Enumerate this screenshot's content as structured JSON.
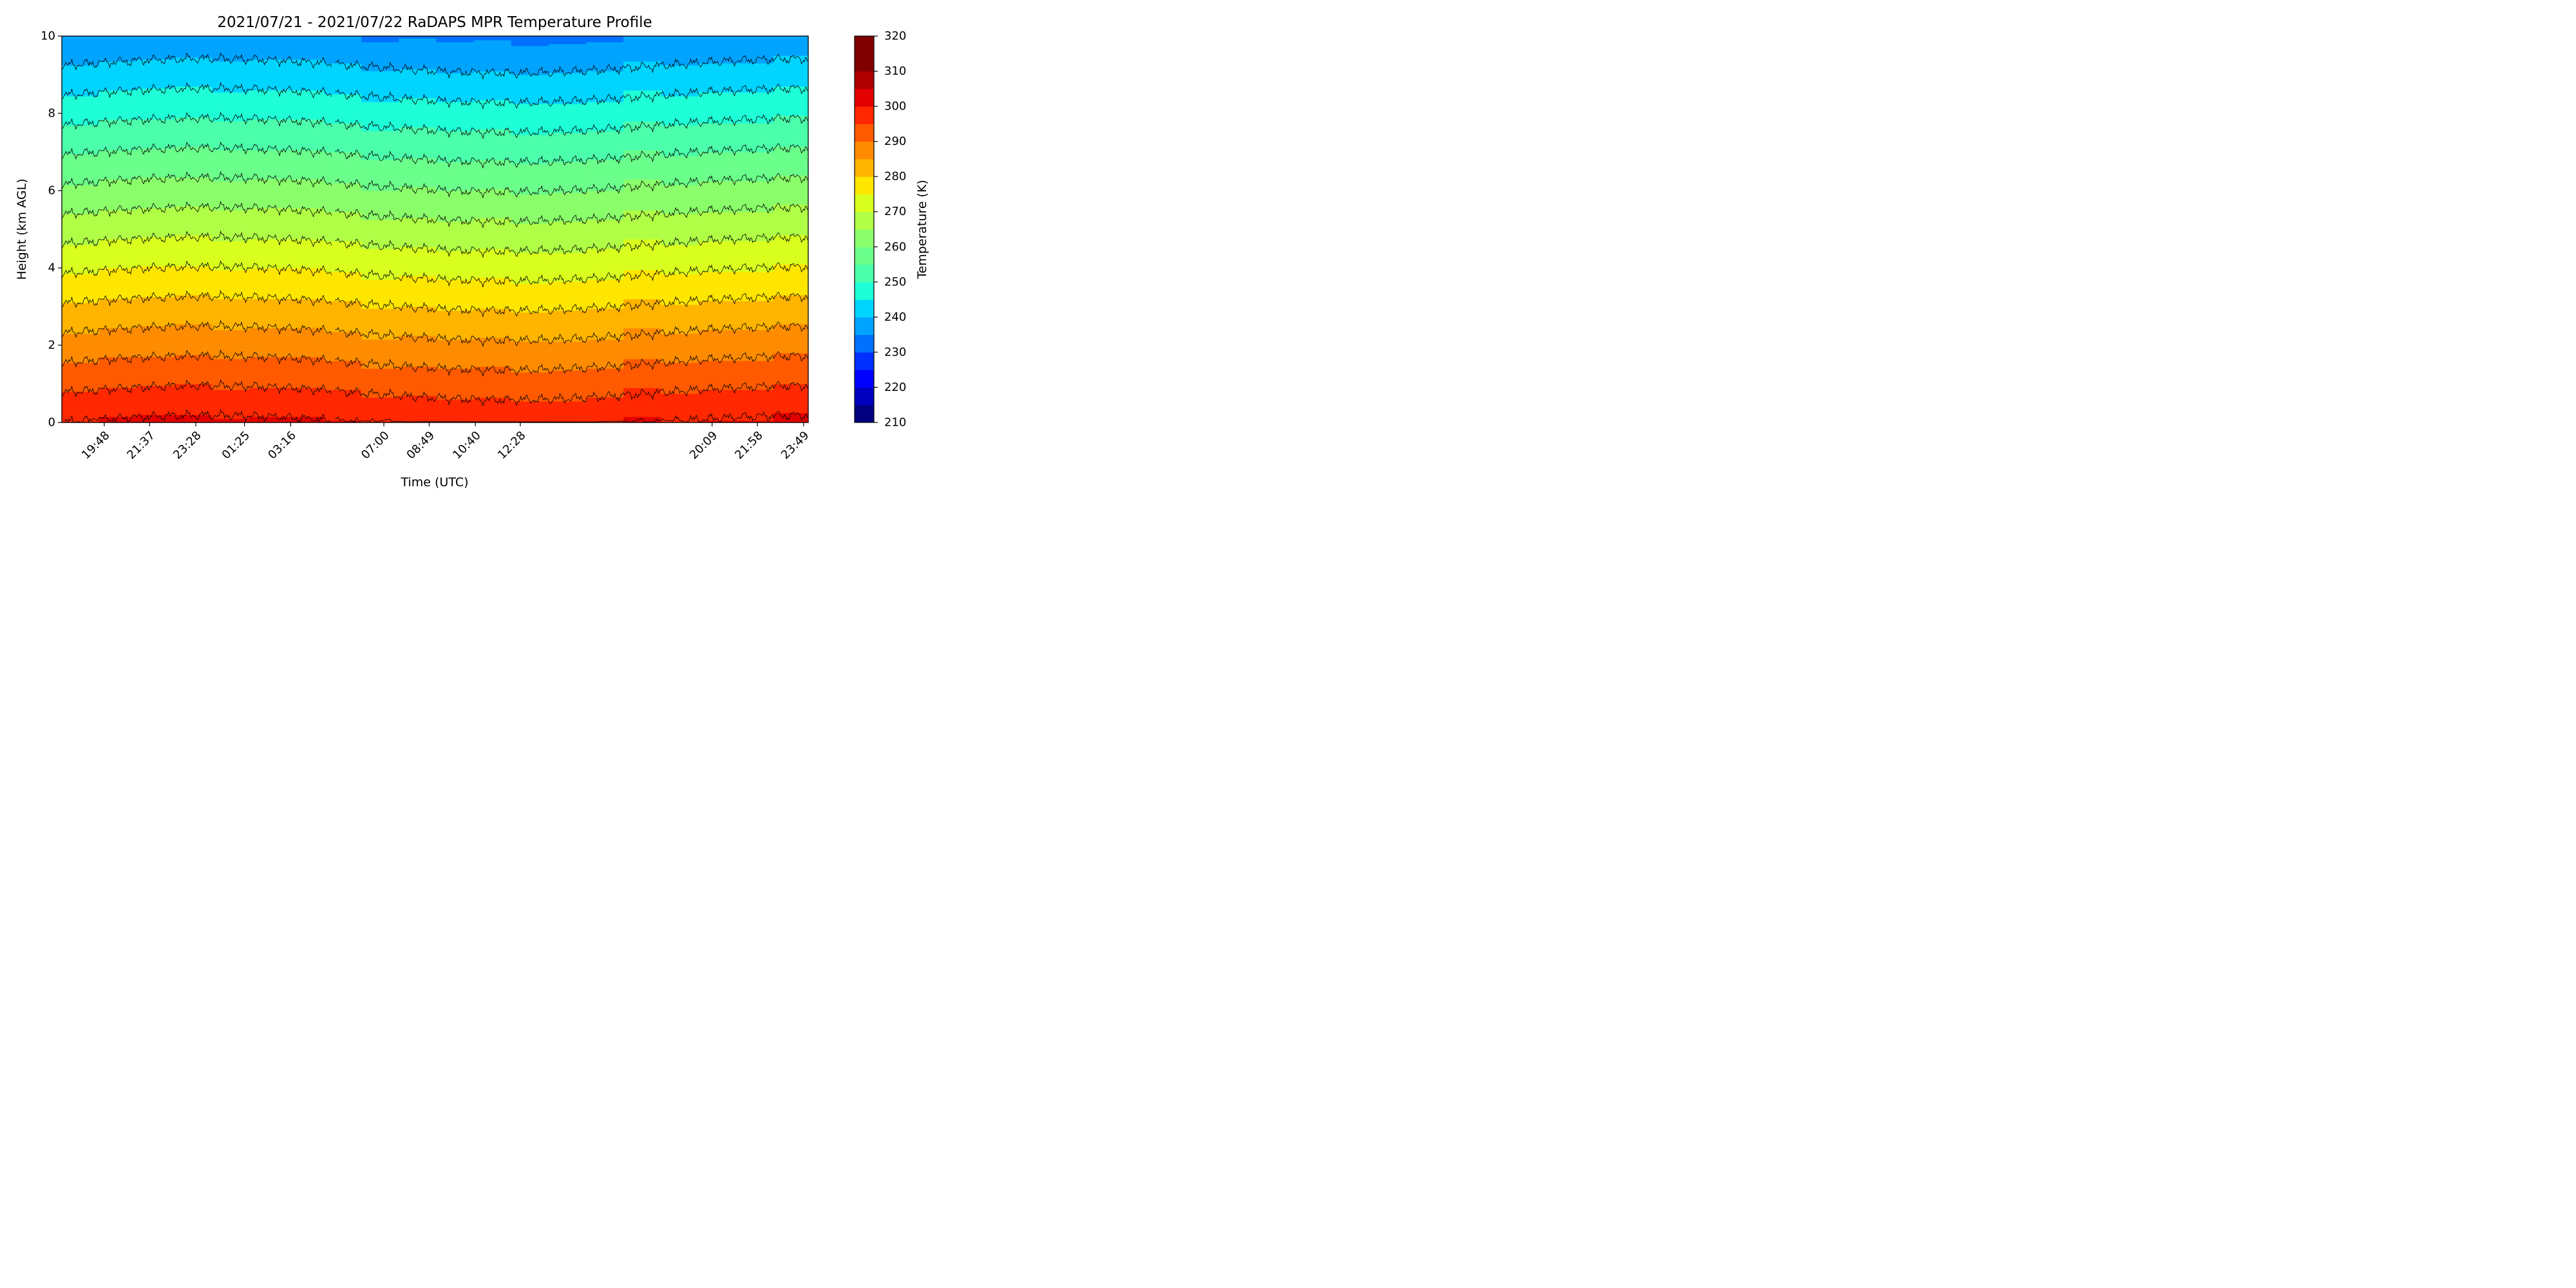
{
  "chart_data": {
    "type": "contourf",
    "title": "2021/07/21 - 2021/07/22 RaDAPS MPR Temperature Profile",
    "xlabel": "Time (UTC)",
    "ylabel": "Height (km AGL)",
    "ylim": [
      0,
      10
    ],
    "yticks": [
      0,
      2,
      4,
      6,
      8,
      10
    ],
    "xticks": [
      "19:48",
      "21:37",
      "23:28",
      "01:25",
      "03:16",
      "07:00",
      "08:49",
      "10:40",
      "12:28",
      "20:09",
      "21:58",
      "23:49"
    ],
    "xtick_times_hours": [
      19.8,
      21.6167,
      23.4667,
      25.4167,
      27.2667,
      31.0,
      32.8167,
      34.6667,
      36.4667,
      44.15,
      45.9667,
      47.8167
    ],
    "xlim_hours": [
      18.1,
      48.0
    ],
    "gap_hours": [
      28.9,
      29.05
    ],
    "colorbar": {
      "label": "Temperature (K)",
      "vmin": 210,
      "vmax": 320,
      "step": 5,
      "ticks": [
        210,
        220,
        230,
        240,
        250,
        260,
        270,
        280,
        290,
        300,
        310,
        320
      ],
      "colors": [
        "#000080",
        "#0000c1",
        "#0000ff",
        "#0030ff",
        "#0070ff",
        "#00a4ff",
        "#00d4ff",
        "#1effd8",
        "#4bffab",
        "#6bff8b",
        "#8bff6b",
        "#b0ff46",
        "#d8ff1e",
        "#ffe600",
        "#ffb400",
        "#ff8c00",
        "#ff5a00",
        "#ff2800",
        "#e30000",
        "#b00000",
        "#800000",
        "#800000"
      ]
    },
    "surface_temperature_k": 300,
    "lapse_rate_k_per_km": 6.5,
    "contour_levels_k": [
      240,
      245,
      250,
      255,
      260,
      265,
      270,
      275,
      280,
      285,
      290,
      295,
      300
    ]
  }
}
